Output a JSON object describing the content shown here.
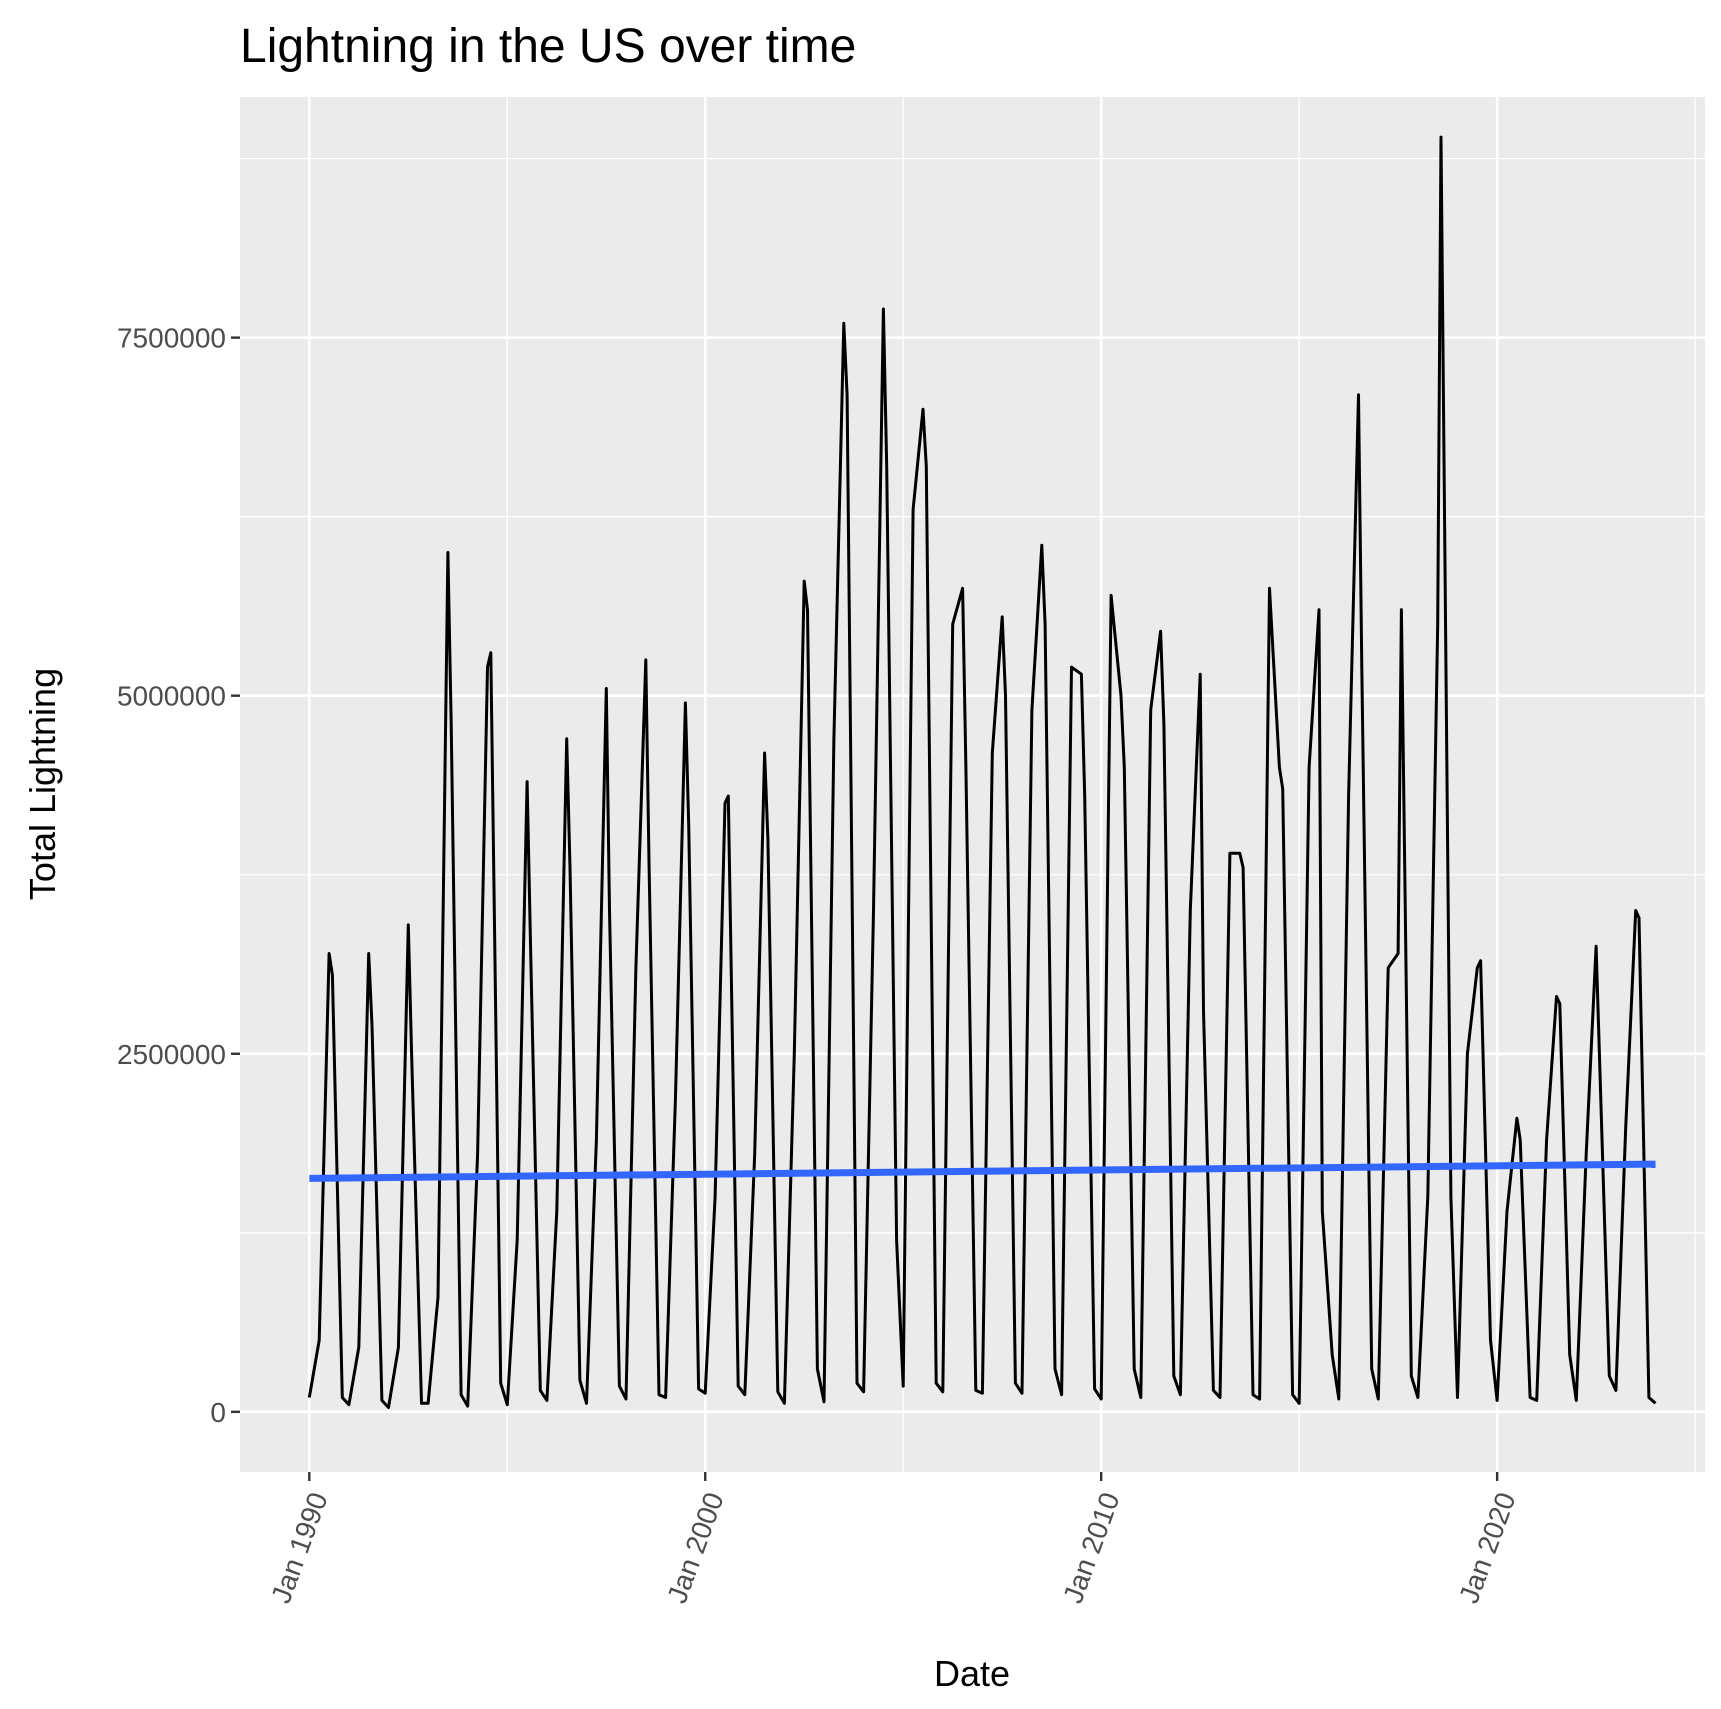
{
  "chart_data": {
    "type": "line",
    "title": "Lightning in the US over time",
    "xlabel": "Date",
    "ylabel": "Total Lightning",
    "x_ticks": [
      {
        "date": "1990-01-01",
        "label": "Jan 1990"
      },
      {
        "date": "2000-01-01",
        "label": "Jan 2000"
      },
      {
        "date": "2010-01-01",
        "label": "Jan 2010"
      },
      {
        "date": "2020-01-01",
        "label": "Jan 2020"
      }
    ],
    "y_ticks": [
      {
        "value": 0,
        "label": "0"
      },
      {
        "value": 2500000,
        "label": "2500000"
      },
      {
        "value": 5000000,
        "label": "5000000"
      },
      {
        "value": 7500000,
        "label": "7500000"
      }
    ],
    "xlim": [
      "1988-04-01",
      "2025-04-01"
    ],
    "ylim": [
      -420000,
      9180000
    ],
    "grid": true,
    "background": "#ebebeb",
    "series": [
      {
        "color": "#000000",
        "x": [
          "1990-01",
          "1990-04",
          "1990-07",
          "1990-08",
          "1990-11",
          "1991-01",
          "1991-04",
          "1991-07",
          "1991-08",
          "1991-11",
          "1992-01",
          "1992-04",
          "1992-07",
          "1992-08",
          "1992-11",
          "1993-01",
          "1993-04",
          "1993-07",
          "1993-08",
          "1993-11",
          "1994-01",
          "1994-04",
          "1994-07",
          "1994-08",
          "1994-11",
          "1995-01",
          "1995-04",
          "1995-07",
          "1995-08",
          "1995-11",
          "1996-01",
          "1996-04",
          "1996-07",
          "1996-08",
          "1996-11",
          "1997-01",
          "1997-04",
          "1997-07",
          "1997-08",
          "1997-11",
          "1998-01",
          "1998-04",
          "1998-07",
          "1998-08",
          "1998-11",
          "1999-01",
          "1999-04",
          "1999-07",
          "1999-08",
          "1999-11",
          "2000-01",
          "2000-04",
          "2000-07",
          "2000-08",
          "2000-11",
          "2001-01",
          "2001-04",
          "2001-07",
          "2001-08",
          "2001-11",
          "2002-01",
          "2002-04",
          "2002-07",
          "2002-08",
          "2002-11",
          "2003-01",
          "2003-04",
          "2003-07",
          "2003-08",
          "2003-11",
          "2004-01",
          "2004-04",
          "2004-07",
          "2004-08",
          "2004-11",
          "2005-01",
          "2005-04",
          "2005-07",
          "2005-08",
          "2005-11",
          "2006-01",
          "2006-04",
          "2006-07",
          "2006-08",
          "2006-11",
          "2007-01",
          "2007-04",
          "2007-07",
          "2007-08",
          "2007-11",
          "2008-01",
          "2008-04",
          "2008-07",
          "2008-08",
          "2008-11",
          "2009-01",
          "2009-04",
          "2009-07",
          "2009-08",
          "2009-11",
          "2010-01",
          "2010-04",
          "2010-07",
          "2010-08",
          "2010-11",
          "2011-01",
          "2011-04",
          "2011-07",
          "2011-08",
          "2011-11",
          "2012-01",
          "2012-04",
          "2012-07",
          "2012-08",
          "2012-11",
          "2013-01",
          "2013-04",
          "2013-07",
          "2013-08",
          "2013-11",
          "2014-01",
          "2014-04",
          "2014-07",
          "2014-08",
          "2014-11",
          "2015-01",
          "2015-04",
          "2015-07",
          "2015-08",
          "2015-11",
          "2016-01",
          "2016-04",
          "2016-07",
          "2016-08",
          "2016-11",
          "2017-01",
          "2017-04",
          "2017-07",
          "2017-08",
          "2017-11",
          "2018-01",
          "2018-04",
          "2018-07",
          "2018-08",
          "2018-11",
          "2019-01",
          "2019-04",
          "2019-07",
          "2019-08",
          "2019-11",
          "2020-01",
          "2020-04",
          "2020-07",
          "2020-08",
          "2020-11",
          "2021-01",
          "2021-04",
          "2021-07",
          "2021-08",
          "2021-11",
          "2022-01",
          "2022-04",
          "2022-07",
          "2022-08",
          "2022-11",
          "2023-01",
          "2023-04",
          "2023-07",
          "2023-08",
          "2023-11",
          "2024-01"
        ],
        "values": [
          100000,
          500000,
          3200000,
          3050000,
          100000,
          50000,
          450000,
          3200000,
          2700000,
          80000,
          30000,
          450000,
          3400000,
          2500000,
          60000,
          60000,
          800000,
          6000000,
          4800000,
          120000,
          40000,
          1800000,
          5200000,
          5300000,
          200000,
          50000,
          1200000,
          4400000,
          3300000,
          150000,
          80000,
          1400000,
          4700000,
          3800000,
          220000,
          60000,
          1900000,
          5050000,
          3500000,
          180000,
          90000,
          3100000,
          5250000,
          3800000,
          120000,
          100000,
          2200000,
          4950000,
          4100000,
          160000,
          130000,
          1500000,
          4250000,
          4300000,
          180000,
          120000,
          1800000,
          4600000,
          4000000,
          140000,
          60000,
          2500000,
          5800000,
          5600000,
          300000,
          70000,
          4700000,
          7600000,
          7100000,
          200000,
          140000,
          3500000,
          7700000,
          6600000,
          1200000,
          180000,
          6300000,
          7000000,
          6600000,
          200000,
          140000,
          5500000,
          5750000,
          4500000,
          150000,
          130000,
          4600000,
          5550000,
          5000000,
          200000,
          130000,
          4900000,
          6050000,
          5500000,
          300000,
          120000,
          5200000,
          5150000,
          4300000,
          160000,
          90000,
          5700000,
          5000000,
          4500000,
          300000,
          100000,
          4900000,
          5450000,
          4800000,
          250000,
          120000,
          3500000,
          5150000,
          2800000,
          150000,
          100000,
          3900000,
          3900000,
          3800000,
          120000,
          90000,
          5750000,
          4500000,
          4350000,
          120000,
          60000,
          4500000,
          5600000,
          1400000,
          400000,
          90000,
          4300000,
          7100000,
          5200000,
          300000,
          90000,
          3100000,
          3200000,
          5600000,
          250000,
          100000,
          1500000,
          5500000,
          8900000,
          1500000,
          100000,
          2500000,
          3100000,
          3150000,
          500000,
          80000,
          1400000,
          2050000,
          1900000,
          100000,
          80000,
          1900000,
          2900000,
          2850000,
          400000,
          80000,
          1800000,
          3250000,
          2500000,
          250000,
          150000,
          2000000,
          3500000,
          3450000,
          100000,
          60000
        ]
      },
      {
        "color": "#3366ff",
        "type": "linear-trend",
        "x": [
          "1990-01",
          "2024-01"
        ],
        "values": [
          1630000,
          1730000
        ]
      }
    ]
  }
}
